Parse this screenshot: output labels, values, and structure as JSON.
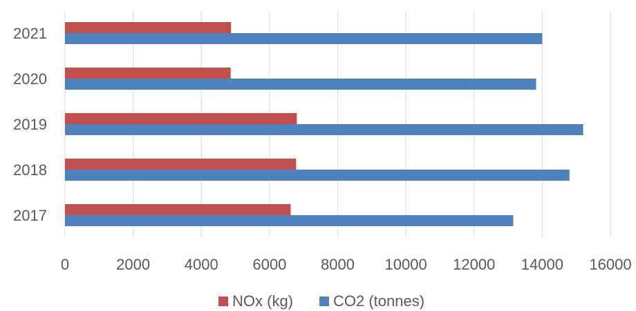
{
  "chart_data": {
    "type": "bar",
    "orientation": "horizontal",
    "categories": [
      "2017",
      "2018",
      "2019",
      "2020",
      "2021"
    ],
    "series": [
      {
        "name": "NOx (kg)",
        "color": "#C0504D",
        "values": [
          6620,
          6780,
          6800,
          4860,
          4870
        ]
      },
      {
        "name": "CO2 (tonnes)",
        "color": "#4F81BD",
        "values": [
          13150,
          14800,
          15200,
          13820,
          14000
        ]
      }
    ],
    "xlim": [
      0,
      16000
    ],
    "xticks": [
      "0",
      "2000",
      "4000",
      "6000",
      "8000",
      "10000",
      "12000",
      "14000",
      "16000"
    ],
    "grid": "vertical",
    "legend": "bottom",
    "title": "",
    "xlabel": "",
    "ylabel": ""
  }
}
